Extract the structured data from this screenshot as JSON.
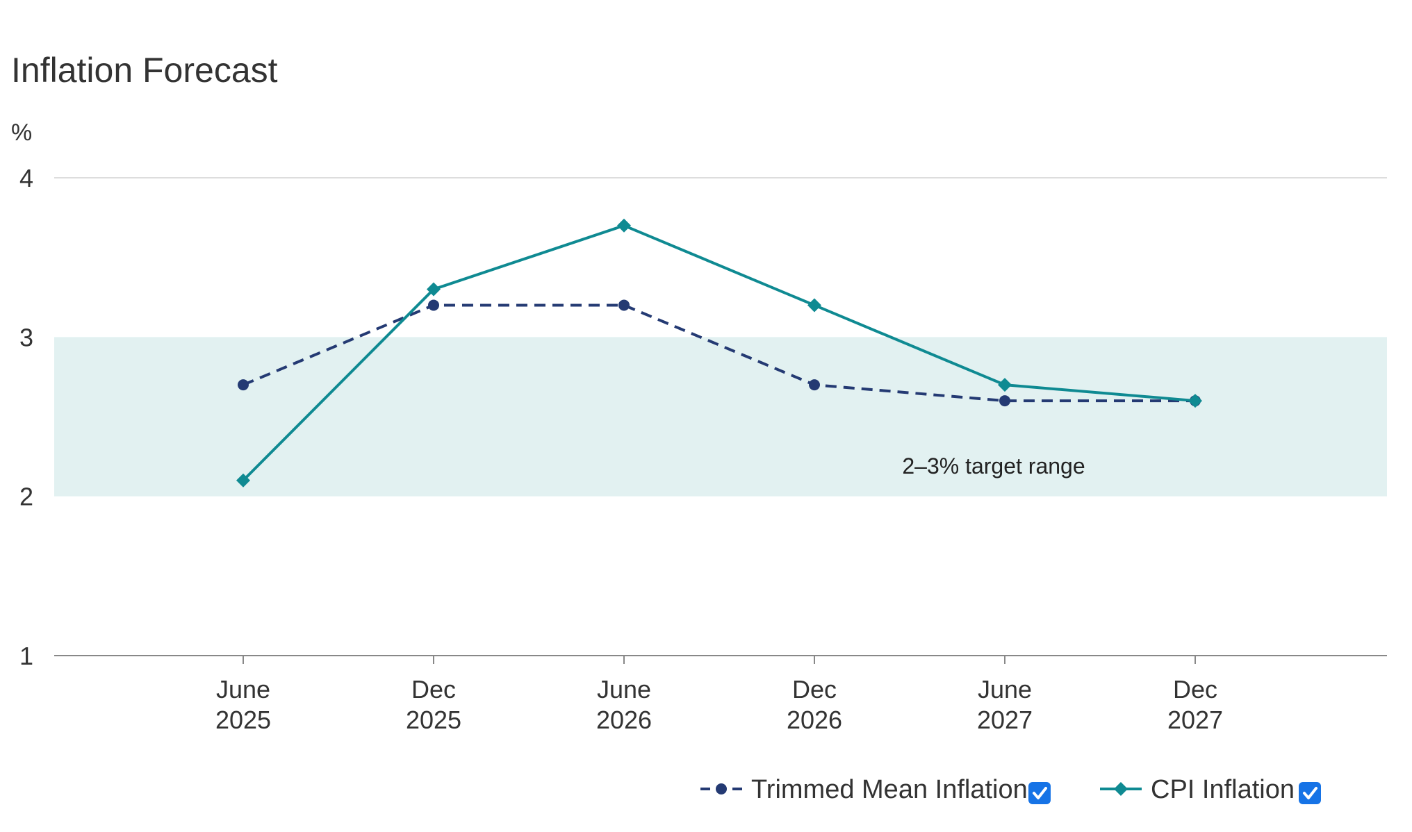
{
  "colors": {
    "trimmed_mean": "#243a73",
    "cpi": "#0f8a92",
    "target_band": "#e2f1f1",
    "gridline": "#dddddd",
    "axis": "#888888",
    "checkbox": "#1673e6"
  },
  "chart_data": {
    "type": "line",
    "title": "Inflation Forecast",
    "ylabel": "%",
    "xlabel": "",
    "ylim": [
      1,
      4
    ],
    "yticks": [
      "1",
      "2",
      "3",
      "4"
    ],
    "categories": [
      [
        "June",
        "2025"
      ],
      [
        "Dec",
        "2025"
      ],
      [
        "June",
        "2026"
      ],
      [
        "Dec",
        "2026"
      ],
      [
        "June",
        "2027"
      ],
      [
        "Dec",
        "2027"
      ]
    ],
    "series": [
      {
        "name": "Trimmed Mean Inflation",
        "values": [
          2.7,
          3.2,
          3.2,
          2.7,
          2.6,
          2.6
        ],
        "style": "dashed",
        "marker": "circle",
        "color_key": "trimmed_mean",
        "checked": true
      },
      {
        "name": "CPI Inflation",
        "values": [
          2.1,
          3.3,
          3.7,
          3.2,
          2.7,
          2.6
        ],
        "style": "solid",
        "marker": "diamond",
        "color_key": "cpi",
        "checked": true
      }
    ],
    "target_band": {
      "from": 2,
      "to": 3,
      "label": "2–3% target range"
    },
    "grid": "horizontal at top tick",
    "legend_position": "bottom-right"
  }
}
